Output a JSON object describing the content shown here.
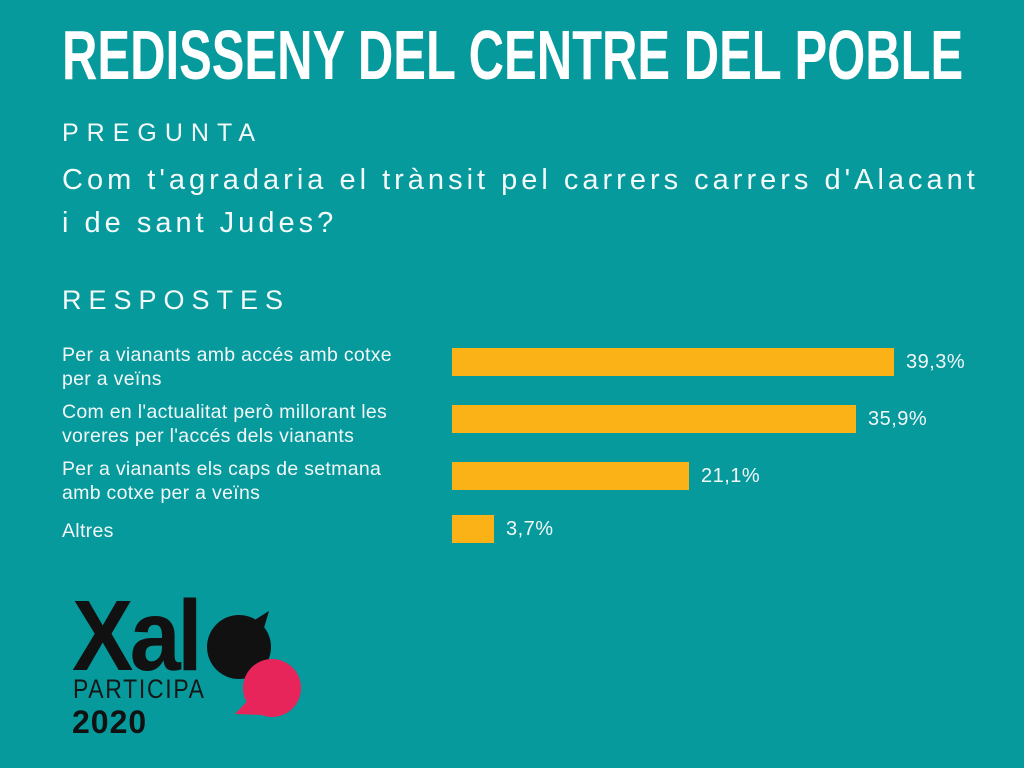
{
  "slide": {
    "title": "REDISSENY DEL CENTRE DEL POBLE",
    "question_label": "PREGUNTA",
    "question_text": "Com t'agradaria el trànsit pel carrers carrers d'Alacant i de sant Judes?",
    "responses_label": "RESPOSTES"
  },
  "chart_data": {
    "type": "bar",
    "orientation": "horizontal",
    "title": "RESPOSTES",
    "categories": [
      "Per a vianants amb accés amb cotxe per a veïns",
      "Com en l'actualitat però millorant les voreres per l'accés dels vianants",
      "Per a vianants els caps de setmana amb cotxe per a veïns",
      "Altres"
    ],
    "categories_display": [
      "Per a vianants amb accés amb cotxe\nper a veïns",
      "Com en l'actualitat però millorant les\nvoreres per l'accés dels vianants",
      "Per a vianants els caps de setmana\namb cotxe per a veïns",
      "Altres"
    ],
    "values": [
      39.3,
      35.9,
      21.1,
      3.7
    ],
    "value_labels": [
      "39,3%",
      "35,9%",
      "21,1%",
      "3,7%"
    ],
    "unit": "%",
    "xlim": [
      0,
      40
    ],
    "grid": false,
    "legend": false,
    "bar_color": "#FBB216",
    "label_position": "right-of-bar"
  },
  "logo": {
    "brand_prefix": "Xal",
    "bubble_icon": "speech-bubbles",
    "subtitle": "PARTICIPA",
    "year": "2020"
  },
  "colors": {
    "background": "#069A9D",
    "bar": "#FBB216",
    "text": "#FFFFFF",
    "logo_text": "#111111",
    "logo_pink": "#E8255B"
  }
}
